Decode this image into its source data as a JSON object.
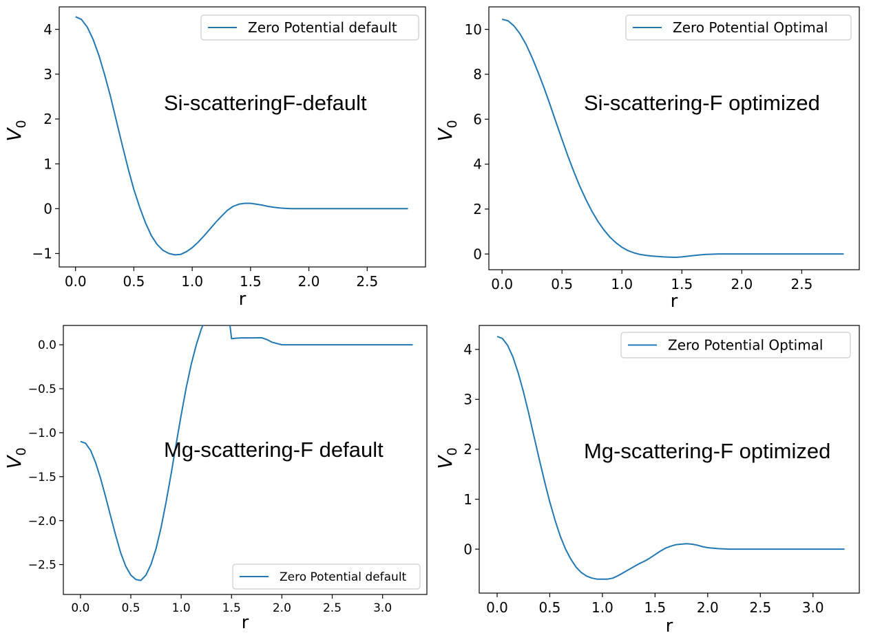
{
  "chart_data": [
    {
      "type": "line",
      "title": "",
      "xlabel": "r",
      "ylabel": "V_0",
      "xlim": [
        -0.14,
        3.0
      ],
      "ylim": [
        -1.3,
        4.5
      ],
      "xticks": [
        0.0,
        0.5,
        1.0,
        1.5,
        2.0,
        2.5
      ],
      "xtick_labels": [
        "0.0",
        "0.5",
        "1.0",
        "1.5",
        "2.0",
        "2.5"
      ],
      "yticks": [
        -1,
        0,
        1,
        2,
        3,
        4
      ],
      "ytick_labels": [
        "−1",
        "0",
        "1",
        "2",
        "3",
        "4"
      ],
      "grid": false,
      "legend": "top-right",
      "annotation": "Si-scatteringF-default",
      "series": [
        {
          "name": "Zero Potential default",
          "color": "#1f77b4",
          "x": [
            0.0,
            0.05,
            0.1,
            0.15,
            0.2,
            0.25,
            0.3,
            0.35,
            0.4,
            0.45,
            0.5,
            0.55,
            0.6,
            0.65,
            0.7,
            0.75,
            0.8,
            0.85,
            0.9,
            0.95,
            1.0,
            1.05,
            1.1,
            1.15,
            1.2,
            1.25,
            1.3,
            1.35,
            1.4,
            1.45,
            1.5,
            1.55,
            1.6,
            1.65,
            1.7,
            1.75,
            1.8,
            1.85,
            1.9,
            2.0,
            2.2,
            2.5,
            2.85
          ],
          "y": [
            4.28,
            4.22,
            4.05,
            3.78,
            3.42,
            2.98,
            2.5,
            1.96,
            1.42,
            0.9,
            0.43,
            0.03,
            -0.32,
            -0.6,
            -0.8,
            -0.93,
            -1.0,
            -1.03,
            -1.02,
            -0.96,
            -0.87,
            -0.75,
            -0.61,
            -0.46,
            -0.31,
            -0.17,
            -0.04,
            0.05,
            0.1,
            0.12,
            0.12,
            0.1,
            0.08,
            0.05,
            0.03,
            0.015,
            0.005,
            0.0,
            0.0,
            0.0,
            0.0,
            0.0,
            0.0
          ]
        }
      ]
    },
    {
      "type": "line",
      "title": "",
      "xlabel": "r",
      "ylabel": "V_0",
      "xlim": [
        -0.11,
        2.98
      ],
      "ylim": [
        -0.7,
        11.0
      ],
      "xticks": [
        0.0,
        0.5,
        1.0,
        1.5,
        2.0,
        2.5
      ],
      "xtick_labels": [
        "0.0",
        "0.5",
        "1.0",
        "1.5",
        "2.0",
        "2.5"
      ],
      "yticks": [
        0,
        2,
        4,
        6,
        8,
        10
      ],
      "ytick_labels": [
        "0",
        "2",
        "4",
        "6",
        "8",
        "10"
      ],
      "grid": false,
      "legend": "top-right",
      "annotation": "Si-scattering-F optimized",
      "series": [
        {
          "name": "Zero Potential Optimal",
          "color": "#1f77b4",
          "x": [
            0.0,
            0.05,
            0.1,
            0.15,
            0.2,
            0.25,
            0.3,
            0.35,
            0.4,
            0.45,
            0.5,
            0.55,
            0.6,
            0.65,
            0.7,
            0.75,
            0.8,
            0.85,
            0.9,
            0.95,
            1.0,
            1.05,
            1.1,
            1.15,
            1.2,
            1.25,
            1.3,
            1.35,
            1.4,
            1.45,
            1.5,
            1.55,
            1.6,
            1.65,
            1.7,
            1.75,
            1.8,
            1.9,
            2.0,
            2.2,
            2.5,
            2.85
          ],
          "y": [
            10.45,
            10.38,
            10.15,
            9.8,
            9.33,
            8.75,
            8.1,
            7.4,
            6.65,
            5.87,
            5.1,
            4.35,
            3.65,
            3.0,
            2.42,
            1.9,
            1.45,
            1.07,
            0.75,
            0.5,
            0.3,
            0.15,
            0.05,
            -0.02,
            -0.06,
            -0.09,
            -0.11,
            -0.13,
            -0.14,
            -0.15,
            -0.13,
            -0.1,
            -0.07,
            -0.04,
            -0.02,
            -0.01,
            0.0,
            0.0,
            0.0,
            0.0,
            0.0,
            0.0
          ]
        }
      ]
    },
    {
      "type": "line",
      "title": "",
      "xlabel": "r",
      "ylabel": "V_0",
      "xlim": [
        -0.17,
        3.44
      ],
      "ylim": [
        -2.84,
        0.22
      ],
      "xticks": [
        0.0,
        0.5,
        1.0,
        1.5,
        2.0,
        2.5,
        3.0
      ],
      "xtick_labels": [
        "0.0",
        "0.5",
        "1.0",
        "1.5",
        "2.0",
        "2.5",
        "3.0"
      ],
      "yticks": [
        0.0,
        -0.5,
        -1.0,
        -1.5,
        -2.0,
        -2.5
      ],
      "ytick_labels": [
        "0.0",
        "−0.5",
        "−1.0",
        "−1.5",
        "−2.0",
        "−2.5"
      ],
      "grid": false,
      "legend": "bottom-right",
      "annotation": "Mg-scattering-F default",
      "series": [
        {
          "name": "Zero Potential default",
          "color": "#1f77b4",
          "x": [
            0.0,
            0.05,
            0.1,
            0.15,
            0.2,
            0.25,
            0.3,
            0.35,
            0.4,
            0.45,
            0.5,
            0.55,
            0.6,
            0.65,
            0.7,
            0.75,
            0.8,
            0.85,
            0.9,
            0.95,
            1.0,
            1.05,
            1.1,
            1.15,
            1.2,
            1.25,
            1.3,
            1.35,
            1.4,
            1.45,
            1.5,
            1.55,
            1.6,
            1.7,
            1.8,
            1.85,
            1.9,
            2.0,
            2.2,
            2.6,
            3.0,
            3.3
          ],
          "y": [
            -1.1,
            -1.12,
            -1.2,
            -1.34,
            -1.52,
            -1.73,
            -1.95,
            -2.17,
            -2.37,
            -2.52,
            -2.62,
            -2.67,
            -2.68,
            -2.62,
            -2.5,
            -2.32,
            -2.08,
            -1.79,
            -1.47,
            -1.13,
            -0.8,
            -0.49,
            -0.22,
            -0.0,
            0.18,
            0.31,
            0.4,
            0.47,
            0.53,
            0.56,
            0.07,
            0.075,
            0.078,
            0.078,
            0.08,
            0.06,
            0.03,
            0.0,
            0.0,
            0.0,
            0.0,
            0.0
          ]
        }
      ]
    },
    {
      "type": "line",
      "title": "",
      "xlabel": "r",
      "ylabel": "V_0",
      "xlim": [
        -0.17,
        3.44
      ],
      "ylim": [
        -0.88,
        4.48
      ],
      "xticks": [
        0.0,
        0.5,
        1.0,
        1.5,
        2.0,
        2.5,
        3.0
      ],
      "xtick_labels": [
        "0.0",
        "0.5",
        "1.0",
        "1.5",
        "2.0",
        "2.5",
        "3.0"
      ],
      "yticks": [
        0,
        1,
        2,
        3,
        4
      ],
      "ytick_labels": [
        "0",
        "1",
        "2",
        "3",
        "4"
      ],
      "grid": false,
      "legend": "top-right",
      "annotation": "Mg-scattering-F optimized",
      "series": [
        {
          "name": "Zero Potential Optimal",
          "color": "#1f77b4",
          "x": [
            0.0,
            0.05,
            0.1,
            0.15,
            0.2,
            0.25,
            0.3,
            0.35,
            0.4,
            0.45,
            0.5,
            0.55,
            0.6,
            0.65,
            0.7,
            0.75,
            0.8,
            0.85,
            0.9,
            0.95,
            1.0,
            1.05,
            1.1,
            1.15,
            1.2,
            1.25,
            1.3,
            1.35,
            1.4,
            1.45,
            1.5,
            1.55,
            1.6,
            1.65,
            1.7,
            1.75,
            1.8,
            1.85,
            1.9,
            1.95,
            2.0,
            2.1,
            2.2,
            2.5,
            3.0,
            3.3
          ],
          "y": [
            4.26,
            4.22,
            4.08,
            3.85,
            3.53,
            3.15,
            2.72,
            2.26,
            1.8,
            1.36,
            0.95,
            0.58,
            0.26,
            0.0,
            -0.2,
            -0.36,
            -0.47,
            -0.54,
            -0.58,
            -0.6,
            -0.6,
            -0.6,
            -0.58,
            -0.53,
            -0.47,
            -0.41,
            -0.35,
            -0.29,
            -0.24,
            -0.18,
            -0.11,
            -0.04,
            0.02,
            0.06,
            0.09,
            0.1,
            0.11,
            0.1,
            0.08,
            0.05,
            0.03,
            0.01,
            0.0,
            0.0,
            0.0,
            0.0
          ]
        }
      ]
    }
  ]
}
